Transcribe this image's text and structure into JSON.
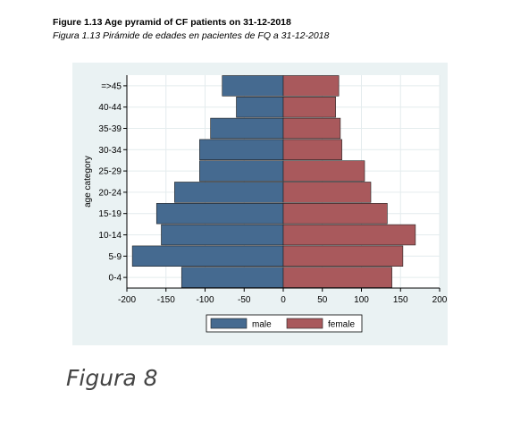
{
  "header": {
    "title": "Figure 1.13 Age pyramid of CF patients on 31-12-2018",
    "subtitle": "Figura 1.13 Pirámide de edades en pacientes de FQ a 31-12-2018"
  },
  "caption": "Figura 8",
  "colors": {
    "male": "#456a90",
    "female": "#a9595c",
    "panel": "#eaf2f3",
    "plot": "#ffffff"
  },
  "chart_data": {
    "type": "bar",
    "orientation": "horizontal",
    "categories": [
      "0-4",
      "5-9",
      "10-14",
      "15-19",
      "20-24",
      "25-29",
      "30-34",
      "35-39",
      "40-44",
      "=>45"
    ],
    "series": [
      {
        "name": "male",
        "values": [
          -130,
          -193,
          -156,
          -162,
          -139,
          -107,
          -107,
          -93,
          -60,
          -78
        ]
      },
      {
        "name": "female",
        "values": [
          139,
          153,
          169,
          133,
          112,
          104,
          75,
          73,
          67,
          71
        ]
      }
    ],
    "xticks": [
      "-200",
      "-150",
      "-100",
      "-50",
      "0",
      "50",
      "100",
      "150",
      "200"
    ],
    "xlim": [
      -200,
      200
    ],
    "ylabel": "age category",
    "xlabel": "",
    "legend": [
      "male",
      "female"
    ],
    "legend_position": "bottom",
    "grid": true
  }
}
